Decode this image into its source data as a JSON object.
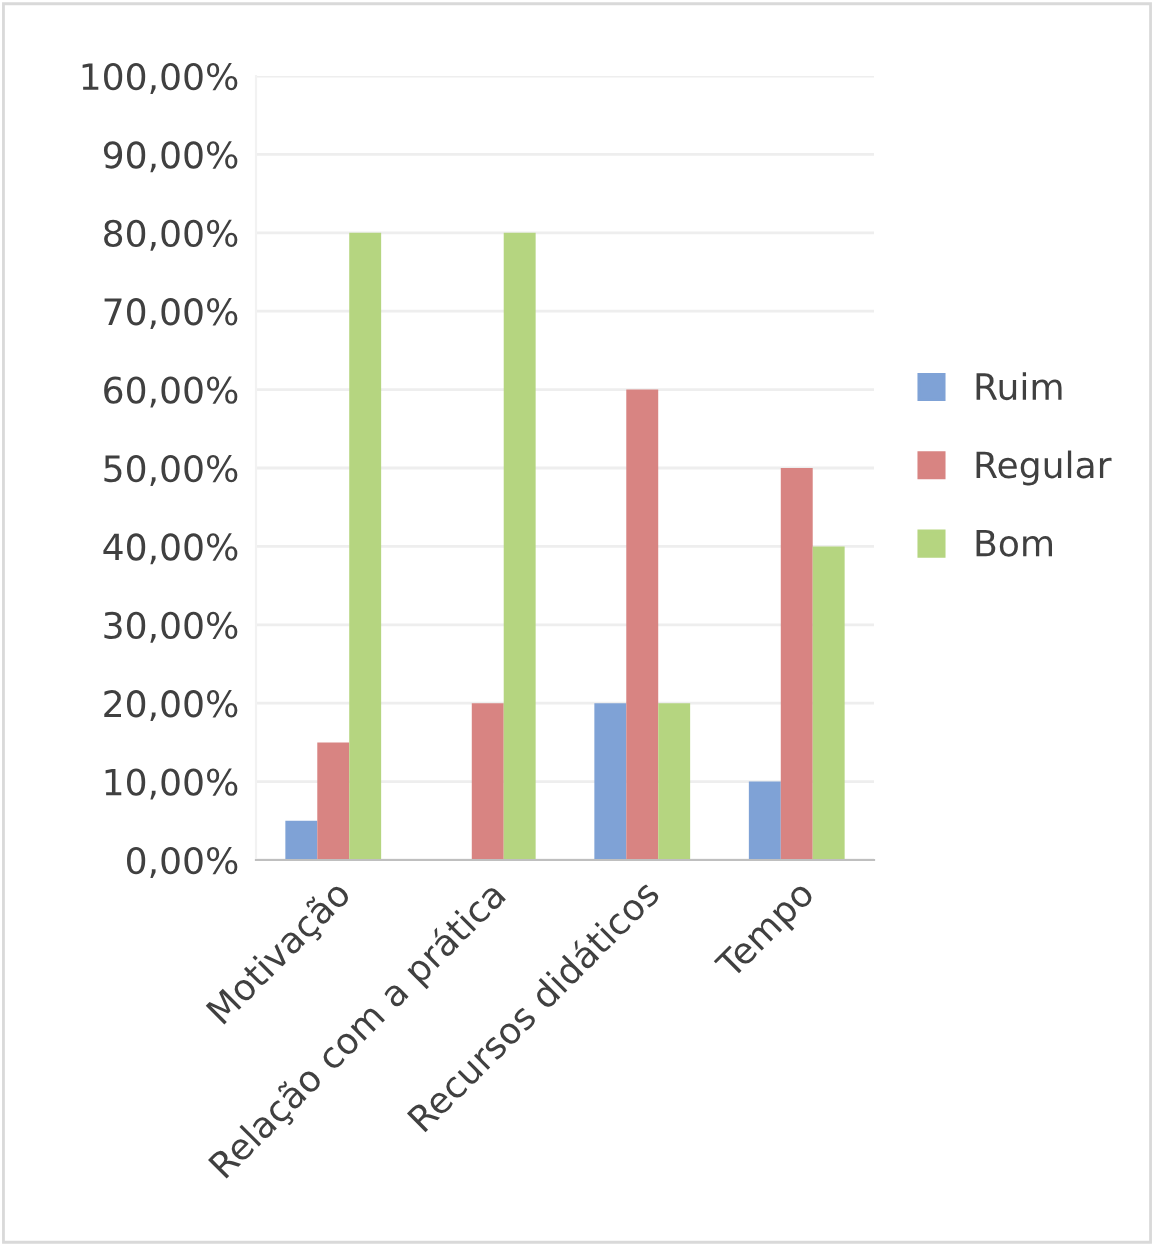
{
  "chart_data": {
    "type": "bar",
    "categories": [
      "Motivação",
      "Relação com a prática",
      "Recursos didáticos",
      "Tempo"
    ],
    "series": [
      {
        "name": "Ruim",
        "color": "#7fa2d6",
        "values": [
          5,
          0,
          20,
          10
        ]
      },
      {
        "name": "Regular",
        "color": "#d88482",
        "values": [
          15,
          20,
          60,
          50
        ]
      },
      {
        "name": "Bom",
        "color": "#b5d580",
        "values": [
          80,
          80,
          20,
          40
        ]
      }
    ],
    "ylim": [
      0,
      100
    ],
    "yticks": [
      {
        "value": 0,
        "label": "0,00%"
      },
      {
        "value": 10,
        "label": "10,00%"
      },
      {
        "value": 20,
        "label": "20,00%"
      },
      {
        "value": 30,
        "label": "30,00%"
      },
      {
        "value": 40,
        "label": "40,00%"
      },
      {
        "value": 50,
        "label": "50,00%"
      },
      {
        "value": 60,
        "label": "60,00%"
      },
      {
        "value": 70,
        "label": "70,00%"
      },
      {
        "value": 80,
        "label": "80,00%"
      },
      {
        "value": 90,
        "label": "90,00%"
      },
      {
        "value": 100,
        "label": "100,00%"
      }
    ],
    "grid": "y",
    "legend": "right"
  }
}
